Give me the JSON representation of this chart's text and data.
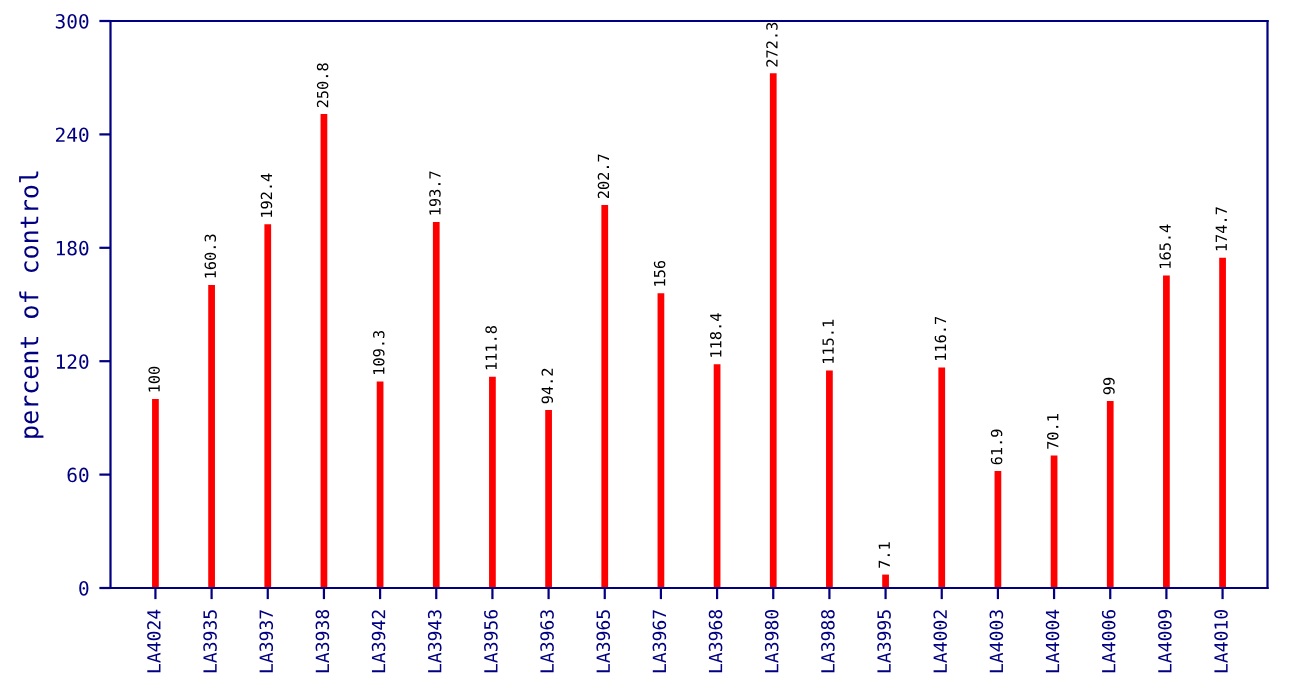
{
  "chart_data": {
    "type": "bar",
    "ylabel": "percent of control",
    "categories": [
      "LA4024",
      "LA3935",
      "LA3937",
      "LA3938",
      "LA3942",
      "LA3943",
      "LA3956",
      "LA3963",
      "LA3965",
      "LA3967",
      "LA3968",
      "LA3980",
      "LA3988",
      "LA3995",
      "LA4002",
      "LA4003",
      "LA4004",
      "LA4006",
      "LA4009",
      "LA4010"
    ],
    "values": [
      100,
      160.3,
      192.4,
      250.8,
      109.3,
      193.7,
      111.8,
      94.2,
      202.7,
      156,
      118.4,
      272.3,
      115.1,
      7.1,
      116.7,
      61.9,
      70.1,
      99,
      165.4,
      174.7
    ],
    "color": "#ff0000",
    "ylim": [
      0,
      300
    ],
    "yticks": [
      0,
      60,
      120,
      180,
      240,
      300
    ],
    "data_labels": true,
    "grid": false
  }
}
